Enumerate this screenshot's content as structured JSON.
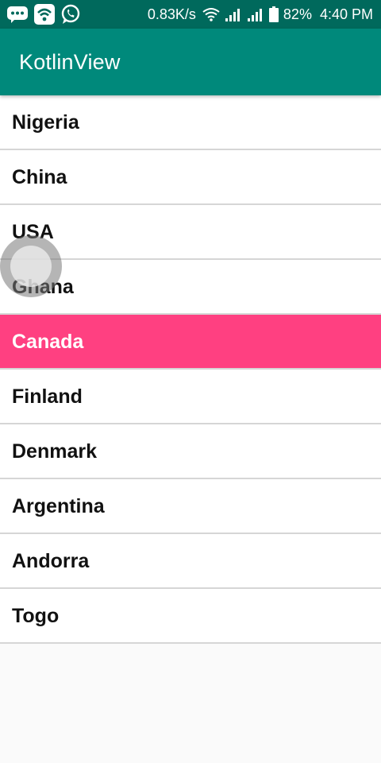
{
  "status_bar": {
    "icons_left": [
      "chat-bubble-icon",
      "wifi-app-icon",
      "whatsapp-icon"
    ],
    "network_speed": "0.83K/s",
    "battery_percent": "82%",
    "time": "4:40 PM"
  },
  "app_bar": {
    "title": "KotlinView"
  },
  "list": {
    "items": [
      {
        "label": "Nigeria",
        "selected": false
      },
      {
        "label": "China",
        "selected": false
      },
      {
        "label": "USA",
        "selected": false
      },
      {
        "label": "Ghana",
        "selected": false
      },
      {
        "label": "Canada",
        "selected": true
      },
      {
        "label": "Finland",
        "selected": false
      },
      {
        "label": "Denmark",
        "selected": false
      },
      {
        "label": "Argentina",
        "selected": false
      },
      {
        "label": "Andorra",
        "selected": false
      },
      {
        "label": "Togo",
        "selected": false
      }
    ]
  },
  "colors": {
    "status_bar": "#00695c",
    "app_bar": "#00897b",
    "selected_row": "#ff4081",
    "background": "#fafafa"
  }
}
